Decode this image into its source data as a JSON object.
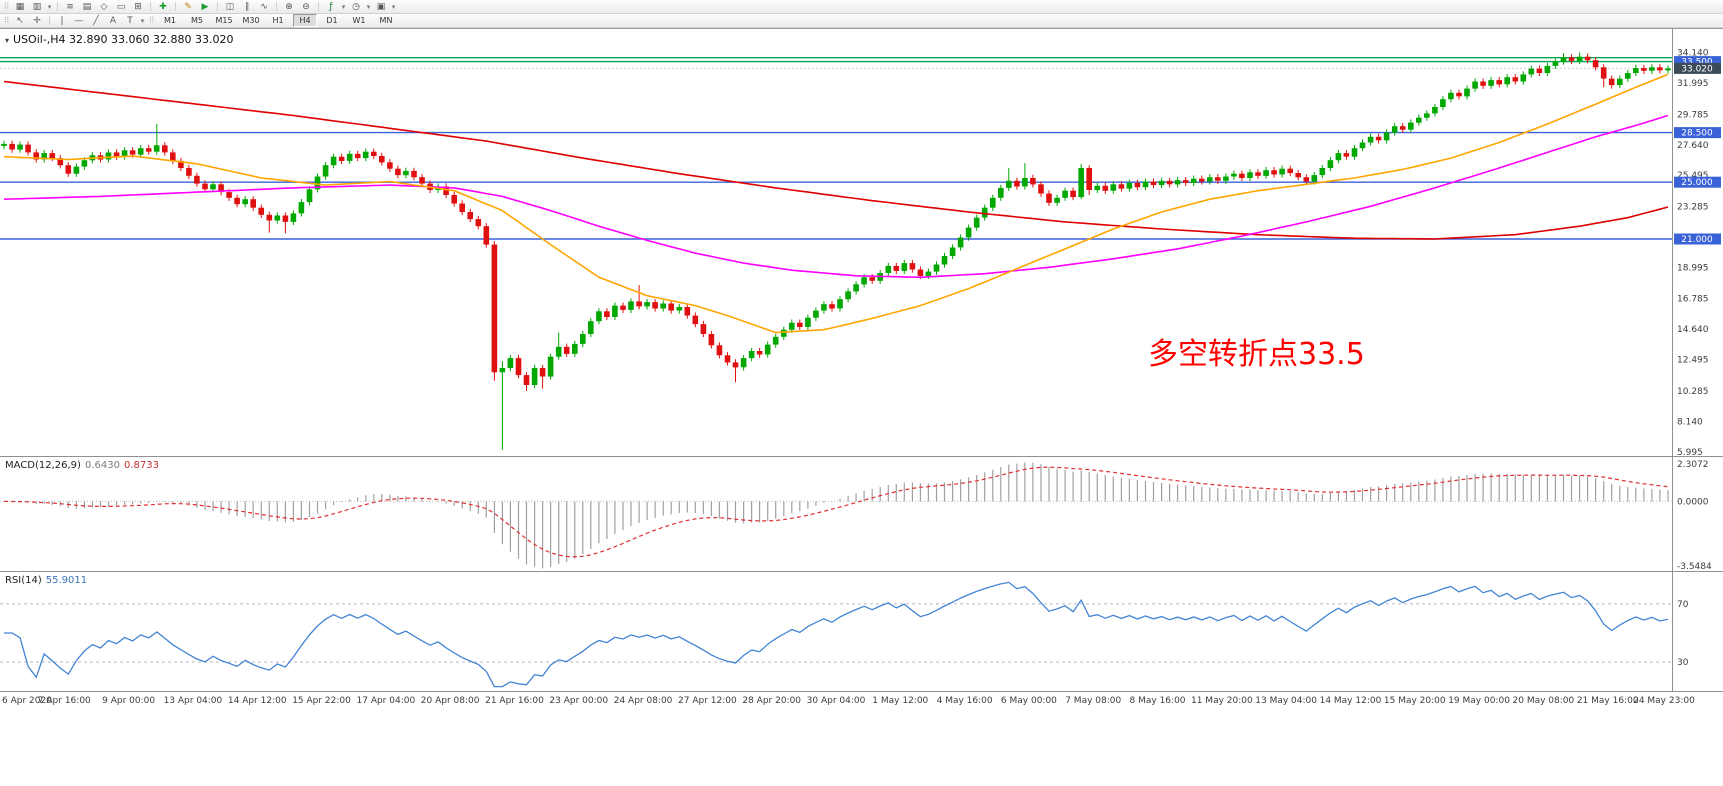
{
  "toolbar": {
    "row1": [
      {
        "type": "handle"
      },
      {
        "name": "new-chart-icon",
        "glyph": "▦"
      },
      {
        "name": "chart-profiles-icon",
        "glyph": "▥"
      },
      {
        "name": "profiles-dropdown-icon",
        "glyph": "▾",
        "small": true
      },
      {
        "type": "sep"
      },
      {
        "name": "market-watch-icon",
        "glyph": "≡"
      },
      {
        "name": "data-window-icon",
        "glyph": "▤"
      },
      {
        "name": "navigator-icon",
        "glyph": "◇"
      },
      {
        "name": "terminal-icon",
        "glyph": "▭"
      },
      {
        "name": "strategy-tester-icon",
        "glyph": "⊞"
      },
      {
        "type": "sep"
      },
      {
        "name": "new-order-icon",
        "glyph": "✚",
        "color": "#1a9c2e"
      },
      {
        "type": "sep"
      },
      {
        "name": "metaeditor-icon",
        "glyph": "✎",
        "color": "#b8860b"
      },
      {
        "name": "autotrading-icon",
        "glyph": "▶",
        "color": "#1a9c2e"
      },
      {
        "type": "sep"
      },
      {
        "name": "candlestick-chart-icon",
        "glyph": "◫"
      },
      {
        "name": "bar-chart-icon",
        "glyph": "∥"
      },
      {
        "name": "line-chart-icon",
        "glyph": "∿"
      },
      {
        "type": "sep"
      },
      {
        "name": "zoom-in-icon",
        "glyph": "⊕"
      },
      {
        "name": "zoom-out-icon",
        "glyph": "⊖"
      },
      {
        "type": "sep"
      },
      {
        "name": "indicators-icon",
        "glyph": "ƒ",
        "color": "#187a2e"
      },
      {
        "name": "indicators-dropdown-icon",
        "glyph": "▾",
        "small": true
      },
      {
        "name": "periods-icon",
        "glyph": "◷"
      },
      {
        "name": "periods-dropdown-icon",
        "glyph": "▾",
        "small": true
      },
      {
        "name": "templates-icon",
        "glyph": "▣"
      },
      {
        "name": "templates-dropdown-icon",
        "glyph": "▾",
        "small": true
      }
    ],
    "row2_icons": [
      {
        "type": "handle"
      },
      {
        "name": "cursor-icon",
        "glyph": "↖"
      },
      {
        "name": "crosshair-icon",
        "glyph": "✛"
      },
      {
        "type": "sep"
      },
      {
        "name": "vertical-line-icon",
        "glyph": "|"
      },
      {
        "name": "horizontal-line-icon",
        "glyph": "—"
      },
      {
        "name": "trendline-icon",
        "glyph": "╱"
      },
      {
        "name": "text-label-icon",
        "glyph": "A"
      },
      {
        "name": "text-box-icon",
        "glyph": "T"
      },
      {
        "name": "shapes-dropdown-icon",
        "glyph": "▾",
        "small": true
      },
      {
        "type": "handle"
      }
    ],
    "timeframes": {
      "items": [
        "M1",
        "M5",
        "M15",
        "M30",
        "H1",
        "H4",
        "D1",
        "W1",
        "MN"
      ],
      "active": "H4"
    }
  },
  "chart": {
    "title": "USOil-,H4 32.890 33.060 32.880 33.020",
    "annotation": {
      "text": "多空转折点33.5",
      "color": "#FF0000"
    },
    "colors": {
      "up": "#00A800",
      "down": "#E01010"
    },
    "current_price": {
      "value": 33.02,
      "label": "33.020",
      "bg": "#3D4A57"
    },
    "hlines": [
      {
        "value": 33.78,
        "color": "#00A651",
        "label": null
      },
      {
        "value": 33.5,
        "color": "#00A651",
        "label": "33.500",
        "label_bg": "#3A62D8"
      },
      {
        "value": 28.5,
        "color": "#3A62D8",
        "label": "28.500",
        "label_bg": "#3A62D8"
      },
      {
        "value": 25.0,
        "color": "#3A62D8",
        "label": "25.000",
        "label_bg": "#3A62D8"
      },
      {
        "value": 21.0,
        "color": "#3A62D8",
        "label": "21.000",
        "label_bg": "#3A62D8"
      }
    ],
    "price_axis_labels": [
      {
        "text": "34.140",
        "value": 34.14
      },
      {
        "text": "31.995",
        "value": 31.995
      },
      {
        "text": "29.785",
        "value": 29.785
      },
      {
        "text": "27.640",
        "value": 27.64
      },
      {
        "text": "25.495",
        "value": 25.495
      },
      {
        "text": "23.285",
        "value": 23.285
      },
      {
        "text": "21.140",
        "value": 21.14
      },
      {
        "text": "18.995",
        "value": 18.995
      },
      {
        "text": "16.785",
        "value": 16.785
      },
      {
        "text": "14.640",
        "value": 14.64
      },
      {
        "text": "12.495",
        "value": 12.495
      },
      {
        "text": "10.285",
        "value": 10.285
      },
      {
        "text": "8.140",
        "value": 8.14
      },
      {
        "text": "5.995",
        "value": 5.995
      }
    ]
  },
  "chart_data": {
    "type": "candlestick",
    "symbol": "USOil-",
    "period": "H4",
    "price_range": [
      5.7,
      35.8
    ],
    "first_open": 27.55,
    "default_wick": 0.22,
    "closes": [
      27.7,
      27.3,
      27.65,
      27.1,
      26.6,
      27.05,
      26.7,
      26.2,
      25.6,
      26.1,
      26.55,
      26.9,
      26.6,
      27.1,
      26.8,
      27.25,
      26.95,
      27.4,
      27.15,
      27.6,
      27.1,
      26.5,
      26.0,
      25.45,
      24.9,
      24.5,
      24.85,
      24.3,
      23.9,
      23.45,
      23.8,
      23.2,
      22.7,
      22.3,
      22.65,
      22.2,
      22.8,
      23.6,
      24.5,
      25.4,
      26.2,
      26.8,
      26.5,
      27.0,
      26.7,
      27.15,
      26.85,
      26.4,
      25.95,
      25.5,
      25.8,
      25.35,
      24.9,
      24.45,
      24.7,
      24.1,
      23.5,
      22.9,
      22.4,
      21.9,
      20.6,
      11.6,
      11.9,
      12.6,
      11.4,
      10.7,
      11.9,
      11.3,
      12.7,
      13.4,
      12.9,
      13.6,
      14.3,
      15.2,
      15.9,
      15.5,
      16.3,
      16.0,
      16.6,
      16.25,
      16.55,
      16.1,
      16.45,
      15.95,
      16.2,
      15.6,
      15.0,
      14.3,
      13.5,
      12.8,
      12.3,
      11.95,
      12.6,
      13.1,
      12.85,
      13.55,
      14.1,
      14.6,
      15.1,
      14.8,
      15.45,
      15.95,
      16.4,
      16.1,
      16.75,
      17.3,
      17.8,
      18.3,
      18.05,
      18.6,
      19.1,
      18.75,
      19.3,
      18.85,
      18.4,
      18.7,
      19.2,
      19.8,
      20.4,
      21.1,
      21.8,
      22.5,
      23.2,
      23.9,
      24.6,
      25.1,
      24.7,
      25.3,
      24.85,
      24.2,
      23.55,
      23.9,
      24.4,
      23.95,
      26.0,
      24.45,
      24.75,
      24.4,
      24.85,
      24.55,
      24.95,
      24.65,
      25.05,
      24.8,
      25.1,
      24.85,
      25.15,
      24.95,
      25.25,
      25.05,
      25.35,
      25.1,
      25.4,
      25.6,
      25.3,
      25.7,
      25.45,
      25.85,
      25.55,
      25.95,
      25.65,
      25.35,
      25.05,
      25.5,
      26.0,
      26.55,
      27.05,
      26.8,
      27.4,
      27.8,
      28.2,
      27.95,
      28.5,
      28.95,
      28.7,
      29.2,
      29.55,
      29.85,
      30.3,
      30.85,
      31.3,
      31.05,
      31.6,
      32.1,
      31.8,
      32.2,
      31.9,
      32.4,
      32.1,
      32.6,
      33.0,
      32.7,
      33.2,
      33.5,
      33.8,
      33.55,
      33.85,
      33.6,
      33.1,
      32.3,
      31.85,
      32.3,
      32.7,
      33.05,
      32.85,
      33.1,
      32.88,
      33.02
    ],
    "candle_overrides": {
      "19": {
        "h": 29.1
      },
      "33": {
        "l": 21.45
      },
      "35": {
        "l": 21.4
      },
      "61": {
        "o": 20.6,
        "h": 20.85,
        "l": 11.0,
        "c": 11.6
      },
      "62": {
        "o": 11.6,
        "h": 12.4,
        "l": 6.14,
        "c": 11.9
      },
      "65": {
        "l": 10.28
      },
      "67": {
        "l": 10.45
      },
      "69": {
        "h": 14.4
      },
      "79": {
        "h": 17.75
      },
      "91": {
        "l": 10.9
      },
      "125": {
        "h": 26.0
      },
      "127": {
        "h": 26.35
      },
      "134": {
        "o": 23.95,
        "h": 26.3,
        "l": 23.8,
        "c": 26.0
      },
      "135": {
        "o": 26.0,
        "h": 26.2,
        "l": 24.1,
        "c": 24.45
      },
      "194": {
        "h": 34.1
      },
      "196": {
        "h": 34.14
      },
      "199": {
        "l": 31.7
      },
      "200": {
        "l": 31.6
      }
    },
    "ma_lines": [
      {
        "name": "slow-ma-red-line",
        "color": "#E00000",
        "points": [
          [
            0,
            32.1
          ],
          [
            12,
            31.3
          ],
          [
            24,
            30.5
          ],
          [
            36,
            29.7
          ],
          [
            48,
            28.8
          ],
          [
            60,
            27.9
          ],
          [
            72,
            26.7
          ],
          [
            84,
            25.6
          ],
          [
            96,
            24.6
          ],
          [
            108,
            23.7
          ],
          [
            120,
            22.9
          ],
          [
            132,
            22.2
          ],
          [
            144,
            21.7
          ],
          [
            156,
            21.3
          ],
          [
            168,
            21.05
          ],
          [
            178,
            21.0
          ],
          [
            188,
            21.3
          ],
          [
            196,
            21.9
          ],
          [
            202,
            22.5
          ],
          [
            207,
            23.25
          ]
        ]
      },
      {
        "name": "mid-ma-magenta-line",
        "color": "#FF00FF",
        "points": [
          [
            0,
            23.8
          ],
          [
            12,
            24.0
          ],
          [
            24,
            24.3
          ],
          [
            36,
            24.6
          ],
          [
            48,
            24.8
          ],
          [
            56,
            24.6
          ],
          [
            62,
            24.0
          ],
          [
            68,
            23.0
          ],
          [
            74,
            21.9
          ],
          [
            80,
            20.9
          ],
          [
            86,
            20.0
          ],
          [
            92,
            19.3
          ],
          [
            98,
            18.8
          ],
          [
            106,
            18.4
          ],
          [
            114,
            18.3
          ],
          [
            122,
            18.55
          ],
          [
            130,
            19.0
          ],
          [
            138,
            19.6
          ],
          [
            146,
            20.3
          ],
          [
            154,
            21.2
          ],
          [
            162,
            22.2
          ],
          [
            170,
            23.3
          ],
          [
            178,
            24.6
          ],
          [
            186,
            26.0
          ],
          [
            192,
            27.1
          ],
          [
            198,
            28.2
          ],
          [
            203,
            29.0
          ],
          [
            207,
            29.7
          ]
        ]
      },
      {
        "name": "fast-ma-orange-line",
        "color": "#FFA500",
        "points": [
          [
            0,
            26.8
          ],
          [
            8,
            26.6
          ],
          [
            16,
            26.85
          ],
          [
            24,
            26.3
          ],
          [
            32,
            25.3
          ],
          [
            40,
            24.8
          ],
          [
            48,
            25.05
          ],
          [
            56,
            24.4
          ],
          [
            62,
            23.0
          ],
          [
            68,
            20.6
          ],
          [
            74,
            18.3
          ],
          [
            80,
            17.0
          ],
          [
            86,
            16.3
          ],
          [
            90,
            15.6
          ],
          [
            96,
            14.4
          ],
          [
            102,
            14.6
          ],
          [
            108,
            15.4
          ],
          [
            114,
            16.3
          ],
          [
            120,
            17.5
          ],
          [
            126,
            18.9
          ],
          [
            132,
            20.3
          ],
          [
            138,
            21.7
          ],
          [
            144,
            22.9
          ],
          [
            150,
            23.8
          ],
          [
            156,
            24.4
          ],
          [
            162,
            24.85
          ],
          [
            168,
            25.3
          ],
          [
            174,
            25.9
          ],
          [
            180,
            26.7
          ],
          [
            186,
            27.8
          ],
          [
            192,
            29.1
          ],
          [
            198,
            30.5
          ],
          [
            203,
            31.7
          ],
          [
            207,
            32.6
          ]
        ]
      }
    ],
    "time_labels": [
      {
        "text": "6 Apr 2020",
        "bar": 0
      },
      {
        "text": "7 Apr 16:00",
        "bar": 8
      },
      {
        "text": "9 Apr 00:00",
        "bar": 16
      },
      {
        "text": "13 Apr 04:00",
        "bar": 24
      },
      {
        "text": "14 Apr 12:00",
        "bar": 32
      },
      {
        "text": "15 Apr 22:00",
        "bar": 40
      },
      {
        "text": "17 Apr 04:00",
        "bar": 48
      },
      {
        "text": "20 Apr 08:00",
        "bar": 56
      },
      {
        "text": "21 Apr 16:00",
        "bar": 64
      },
      {
        "text": "23 Apr 00:00",
        "bar": 72
      },
      {
        "text": "24 Apr 08:00",
        "bar": 80
      },
      {
        "text": "27 Apr 12:00",
        "bar": 88
      },
      {
        "text": "28 Apr 20:00",
        "bar": 96
      },
      {
        "text": "30 Apr 04:00",
        "bar": 104
      },
      {
        "text": "1 May 12:00",
        "bar": 112
      },
      {
        "text": "4 May 16:00",
        "bar": 120
      },
      {
        "text": "6 May 00:00",
        "bar": 128
      },
      {
        "text": "7 May 08:00",
        "bar": 136
      },
      {
        "text": "8 May 16:00",
        "bar": 144
      },
      {
        "text": "11 May 20:00",
        "bar": 152
      },
      {
        "text": "13 May 04:00",
        "bar": 160
      },
      {
        "text": "14 May 12:00",
        "bar": 168
      },
      {
        "text": "15 May 20:00",
        "bar": 176
      },
      {
        "text": "19 May 00:00",
        "bar": 184
      },
      {
        "text": "20 May 08:00",
        "bar": 192
      },
      {
        "text": "21 May 16:00",
        "bar": 200
      },
      {
        "text": "24 May 23:00",
        "bar": 207
      }
    ],
    "indicators": {
      "macd": {
        "label": "MACD(12,26,9)",
        "main_value": "0.6430",
        "signal_value": "0.8733",
        "axis_top": "2.3072",
        "axis_zero": "0.0000",
        "axis_bottom": "-3.5484",
        "params": [
          12,
          26,
          9
        ]
      },
      "rsi": {
        "label": "RSI(14)",
        "value": "55.9011",
        "levels": [
          70,
          30
        ],
        "range": [
          10,
          92
        ],
        "period": 14
      }
    }
  }
}
